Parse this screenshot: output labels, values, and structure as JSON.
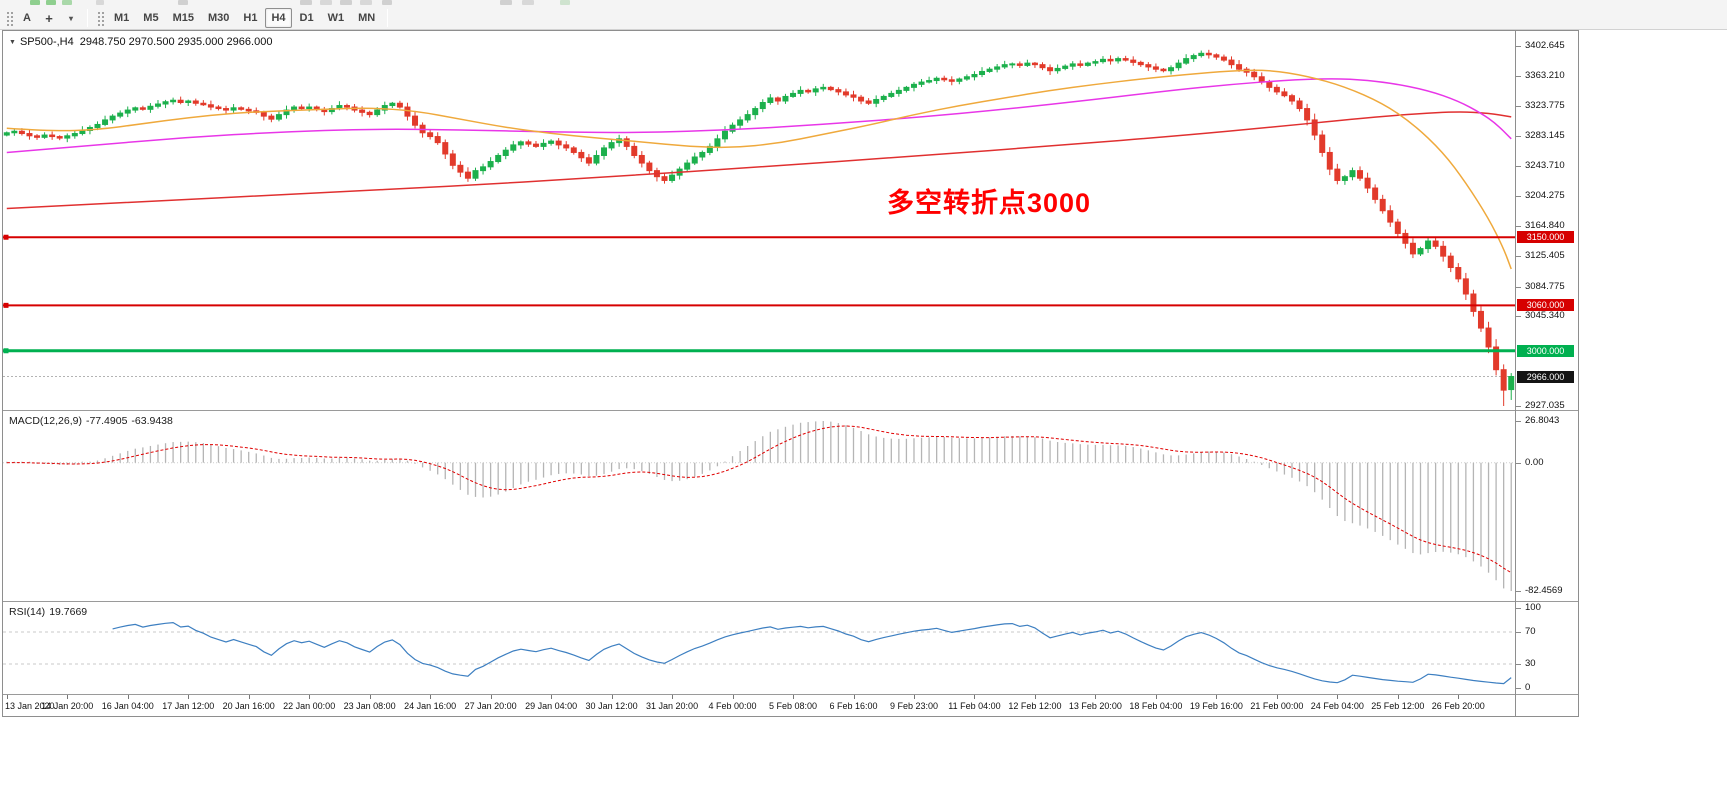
{
  "toolbar": {
    "font_button": "A",
    "crosshair_tool": "+",
    "dropdown_arrow": "▾",
    "timeframes": [
      "M1",
      "M5",
      "M15",
      "M30",
      "H1",
      "H4",
      "D1",
      "W1",
      "MN"
    ],
    "active_timeframe": "H4"
  },
  "chart": {
    "title_symbol": "SP500-,H4",
    "title_ohlc": "2948.750 2970.500 2935.000 2966.000",
    "annotation": {
      "text": "多空转折点3000",
      "color": "#FF0000"
    },
    "price_ticks": [
      "3402.645",
      "3363.210",
      "3323.775",
      "3283.145",
      "3243.710",
      "3204.275",
      "3164.840",
      "3125.405",
      "3084.775",
      "3045.340",
      "2927.035"
    ],
    "hlines": [
      {
        "label": "3150.000",
        "value": 3150.0,
        "color": "#D60000",
        "width": 2
      },
      {
        "label": "3060.000",
        "value": 3060.0,
        "color": "#D60000",
        "width": 2
      },
      {
        "label": "3000.000",
        "value": 3000.0,
        "color": "#00B050",
        "width": 3
      }
    ],
    "current_price": {
      "label": "2966.000",
      "value": 2966.0,
      "bg": "#141414"
    }
  },
  "macd": {
    "name": "MACD(12,26,9)",
    "value_main": "-77.4905",
    "value_signal": "-63.9438",
    "scale_max": "26.8043",
    "scale_zero": "0.00",
    "scale_min": "-82.4569",
    "histogram_color": "#b5b5b5",
    "signal_color": "#E00000"
  },
  "rsi": {
    "name": "RSI(14)",
    "value": "19.7669",
    "line_color": "#3D7FC1",
    "levels": [
      {
        "label": "100",
        "value": 100
      },
      {
        "label": "70",
        "value": 70,
        "dashed": true
      },
      {
        "label": "30",
        "value": 30,
        "dashed": true
      },
      {
        "label": "0",
        "value": 0
      }
    ]
  },
  "time_axis": {
    "labels": [
      {
        "text": "13 Jan 2020",
        "bar": 0
      },
      {
        "text": "14 Jan 20:00",
        "bar": 8
      },
      {
        "text": "16 Jan 04:00",
        "bar": 16
      },
      {
        "text": "17 Jan 12:00",
        "bar": 24
      },
      {
        "text": "20 Jan 16:00",
        "bar": 32
      },
      {
        "text": "22 Jan 00:00",
        "bar": 40
      },
      {
        "text": "23 Jan 08:00",
        "bar": 48
      },
      {
        "text": "24 Jan 16:00",
        "bar": 56
      },
      {
        "text": "27 Jan 20:00",
        "bar": 64
      },
      {
        "text": "29 Jan 04:00",
        "bar": 72
      },
      {
        "text": "30 Jan 12:00",
        "bar": 80
      },
      {
        "text": "31 Jan 20:00",
        "bar": 88
      },
      {
        "text": "4 Feb 00:00",
        "bar": 96
      },
      {
        "text": "5 Feb 08:00",
        "bar": 104
      },
      {
        "text": "6 Feb 16:00",
        "bar": 112
      },
      {
        "text": "9 Feb 23:00",
        "bar": 120
      },
      {
        "text": "11 Feb 04:00",
        "bar": 128
      },
      {
        "text": "12 Feb 12:00",
        "bar": 136
      },
      {
        "text": "13 Feb 20:00",
        "bar": 144
      },
      {
        "text": "18 Feb 04:00",
        "bar": 152
      },
      {
        "text": "19 Feb 16:00",
        "bar": 160
      },
      {
        "text": "21 Feb 00:00",
        "bar": 168
      },
      {
        "text": "24 Feb 04:00",
        "bar": 176
      },
      {
        "text": "25 Feb 12:00",
        "bar": 184
      },
      {
        "text": "26 Feb 20:00",
        "bar": 192
      }
    ]
  },
  "chart_data": {
    "type": "candlestick",
    "symbol": "SP500-",
    "timeframe": "H4",
    "last_bar": {
      "open": 2948.75,
      "high": 2970.5,
      "low": 2935.0,
      "close": 2966.0
    },
    "lowest_low": 2927.035,
    "first_open": 3285.0,
    "y_axis": {
      "max": 3402.645,
      "min": 2927.035
    },
    "up_color": "#1CB04C",
    "down_color": "#E23A2B",
    "closes": [
      3288,
      3290,
      3287,
      3284,
      3282,
      3285,
      3283,
      3281,
      3284,
      3287,
      3291,
      3295,
      3299,
      3305,
      3310,
      3314,
      3318,
      3321,
      3319,
      3323,
      3326,
      3329,
      3331,
      3328,
      3330,
      3327,
      3325,
      3322,
      3320,
      3318,
      3321,
      3319,
      3317,
      3315,
      3310,
      3306,
      3312,
      3318,
      3322,
      3320,
      3322,
      3319,
      3316,
      3320,
      3324,
      3322,
      3318,
      3315,
      3312,
      3318,
      3324,
      3327,
      3322,
      3310,
      3298,
      3288,
      3283,
      3275,
      3260,
      3245,
      3236,
      3228,
      3238,
      3243,
      3250,
      3258,
      3265,
      3272,
      3276,
      3273,
      3270,
      3274,
      3277,
      3272,
      3268,
      3262,
      3255,
      3248,
      3258,
      3268,
      3275,
      3280,
      3270,
      3258,
      3248,
      3238,
      3230,
      3225,
      3232,
      3240,
      3248,
      3256,
      3262,
      3270,
      3280,
      3290,
      3298,
      3305,
      3312,
      3320,
      3328,
      3334,
      3330,
      3336,
      3340,
      3344,
      3342,
      3346,
      3348,
      3345,
      3342,
      3338,
      3335,
      3330,
      3327,
      3332,
      3336,
      3340,
      3344,
      3348,
      3352,
      3355,
      3357,
      3360,
      3358,
      3356,
      3359,
      3362,
      3365,
      3369,
      3372,
      3375,
      3378,
      3379,
      3377,
      3380,
      3378,
      3374,
      3370,
      3373,
      3376,
      3379,
      3377,
      3380,
      3382,
      3385,
      3383,
      3386,
      3384,
      3381,
      3378,
      3375,
      3372,
      3370,
      3374,
      3380,
      3386,
      3390,
      3393,
      3391,
      3388,
      3384,
      3378,
      3372,
      3368,
      3362,
      3355,
      3348,
      3342,
      3337,
      3330,
      3320,
      3305,
      3285,
      3262,
      3240,
      3225,
      3230,
      3238,
      3228,
      3215,
      3200,
      3185,
      3170,
      3155,
      3142,
      3128,
      3135,
      3145,
      3138,
      3125,
      3110,
      3095,
      3075,
      3052,
      3030,
      3005,
      2975,
      2948,
      2966
    ],
    "moving_averages": [
      {
        "name": "ma-slow",
        "color": "#E03030",
        "points": [
          [
            0,
            3188
          ],
          [
            20,
            3198
          ],
          [
            40,
            3208
          ],
          [
            60,
            3218
          ],
          [
            80,
            3230
          ],
          [
            100,
            3243
          ],
          [
            120,
            3257
          ],
          [
            140,
            3272
          ],
          [
            155,
            3284
          ],
          [
            168,
            3296
          ],
          [
            178,
            3306
          ],
          [
            186,
            3313
          ],
          [
            192,
            3316
          ],
          [
            196,
            3314
          ],
          [
            199,
            3309
          ]
        ]
      },
      {
        "name": "ma-medium",
        "color": "#E836E8",
        "points": [
          [
            0,
            3262
          ],
          [
            12,
            3272
          ],
          [
            24,
            3282
          ],
          [
            36,
            3289
          ],
          [
            48,
            3293
          ],
          [
            60,
            3292
          ],
          [
            72,
            3289
          ],
          [
            84,
            3288
          ],
          [
            96,
            3292
          ],
          [
            108,
            3299
          ],
          [
            120,
            3308
          ],
          [
            132,
            3319
          ],
          [
            144,
            3332
          ],
          [
            154,
            3344
          ],
          [
            162,
            3352
          ],
          [
            170,
            3358
          ],
          [
            177,
            3360
          ],
          [
            183,
            3354
          ],
          [
            188,
            3344
          ],
          [
            192,
            3330
          ],
          [
            195,
            3314
          ],
          [
            197,
            3300
          ],
          [
            199,
            3280
          ]
        ]
      },
      {
        "name": "ma-fast",
        "color": "#EFA93C",
        "points": [
          [
            0,
            3294
          ],
          [
            6,
            3290
          ],
          [
            12,
            3292
          ],
          [
            18,
            3300
          ],
          [
            24,
            3308
          ],
          [
            30,
            3314
          ],
          [
            36,
            3317
          ],
          [
            42,
            3319
          ],
          [
            48,
            3321
          ],
          [
            54,
            3317
          ],
          [
            60,
            3306
          ],
          [
            66,
            3295
          ],
          [
            72,
            3287
          ],
          [
            78,
            3281
          ],
          [
            84,
            3276
          ],
          [
            90,
            3270
          ],
          [
            96,
            3268
          ],
          [
            102,
            3274
          ],
          [
            108,
            3286
          ],
          [
            114,
            3298
          ],
          [
            120,
            3312
          ],
          [
            126,
            3324
          ],
          [
            132,
            3334
          ],
          [
            138,
            3344
          ],
          [
            144,
            3352
          ],
          [
            150,
            3359
          ],
          [
            156,
            3365
          ],
          [
            162,
            3370
          ],
          [
            167,
            3371
          ],
          [
            172,
            3363
          ],
          [
            177,
            3349
          ],
          [
            182,
            3327
          ],
          [
            186,
            3300
          ],
          [
            190,
            3262
          ],
          [
            193,
            3222
          ],
          [
            196,
            3175
          ],
          [
            198,
            3135
          ],
          [
            199,
            3108
          ]
        ]
      }
    ]
  }
}
